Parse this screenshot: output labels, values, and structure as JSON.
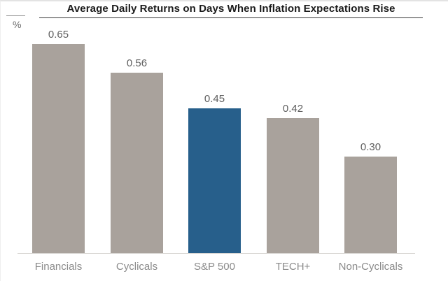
{
  "chart_data": {
    "type": "bar",
    "title": "Average Daily Returns on Days When Inflation Expectations Rise",
    "unit_label": "%",
    "categories": [
      "Financials",
      "Cyclicals",
      "S&P 500",
      "TECH+",
      "Non-Cyclicals"
    ],
    "values": [
      0.65,
      0.56,
      0.45,
      0.42,
      0.3
    ],
    "value_labels": [
      "0.65",
      "0.56",
      "0.45",
      "0.42",
      "0.30"
    ],
    "highlighted_category": "S&P 500",
    "highlighted_index": 2,
    "ylim": [
      0,
      0.7
    ],
    "grid": false,
    "legend": "none",
    "value_labels_shown": true,
    "colors": {
      "bar": "#a9a29c",
      "highlight": "#275f8b",
      "title_text": "#1a1a1a",
      "value_label": "#5f5f5f",
      "category_label": "#8a8a8a",
      "axis_line": "#d6d3d0",
      "title_rule": "#3a3a3a",
      "background": "#ffffff"
    }
  }
}
